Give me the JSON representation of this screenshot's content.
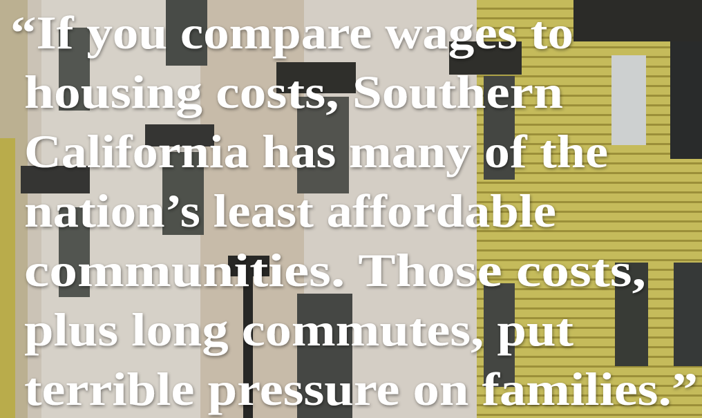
{
  "quote": {
    "lines": [
      "“If you compare wages to",
      "housing costs, Southern",
      "California has many of the",
      "nation’s least affordable",
      "communities. Those costs,",
      "plus long commutes, put",
      "terrible pressure on families.”"
    ]
  }
}
